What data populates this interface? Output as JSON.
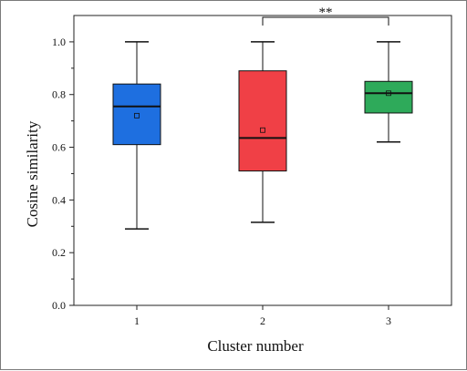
{
  "chart_data": {
    "type": "box",
    "title": "",
    "xlabel": "Cluster number",
    "ylabel": "Cosine similarity",
    "categories": [
      "1",
      "2",
      "3"
    ],
    "ylim": [
      0.0,
      1.1
    ],
    "yticks": [
      "0.0",
      "0.2",
      "0.4",
      "0.6",
      "0.8",
      "1.0"
    ],
    "grid": false,
    "legend": "none",
    "series": [
      {
        "category": "1",
        "min": 0.29,
        "q1": 0.61,
        "median": 0.755,
        "q3": 0.84,
        "max": 1.0,
        "mean": 0.72,
        "color": "#1e6fe0"
      },
      {
        "category": "2",
        "min": 0.315,
        "q1": 0.51,
        "median": 0.635,
        "q3": 0.89,
        "max": 1.0,
        "mean": 0.665,
        "color": "#f04046"
      },
      {
        "category": "3",
        "min": 0.62,
        "q1": 0.73,
        "median": 0.805,
        "q3": 0.85,
        "max": 1.0,
        "mean": 0.805,
        "color": "#2eaa5a"
      }
    ],
    "annotations": [
      {
        "type": "significance-bracket",
        "from": "2",
        "to": "3",
        "label": "**"
      }
    ]
  }
}
